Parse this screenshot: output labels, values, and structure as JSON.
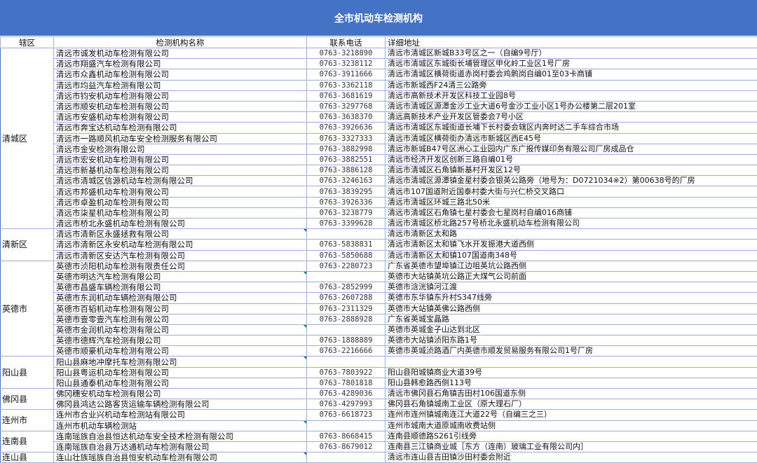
{
  "title": "全市机动车检测机构",
  "headers": {
    "district": "辖区",
    "name": "检测机构名称",
    "phone": "联系电话",
    "address": "详细地址"
  },
  "accent_color": "#4472C4",
  "groups": [
    {
      "district": "清城区",
      "rows": [
        {
          "name": "清远市诚发机动车检测有限公司",
          "phone": "0763-3218890",
          "address": "清远市清城区新城B33号区之一（自编9号厅）"
        },
        {
          "name": "清远市翔盛汽车检测有限公司",
          "phone": "0763-3238112",
          "address": "清远市清城区东城街长埔管理区甲化岭工业区1号厂房"
        },
        {
          "name": "清远市众鑫机动车检测有限公司",
          "phone": "0763-3911666",
          "address": "清远市清城区横荷街道赤岗村委会鸡鹘岗自编01至03卡商铺"
        },
        {
          "name": "清远市均益汽车检测有限公司",
          "phone": "0763-3362118",
          "address": "清远市新城西F24清三公路旁"
        },
        {
          "name": "清远市钧安机动车检测有限公司",
          "phone": "0763-3681619",
          "address": "清远市高新技术开发区科技工业园8号"
        },
        {
          "name": "清远市顺安机动车检测有限公司",
          "phone": "0763-3297768",
          "address": "清远市清城区源潭金沙工业大道6号金沙工业小区1号办公楼第二层201室"
        },
        {
          "name": "清远市安盛机动车检测有限公司",
          "phone": "0763-3638370",
          "address": "清远高新技术产业开发区管委会7号小区"
        },
        {
          "name": "清远市奔宝达机动车检测有限公司",
          "phone": "0763-3926636",
          "address": "清远市清城区东城街道长埔下长村委会辖区内奔时达二手车综合市场"
        },
        {
          "name": "清远市一路顺风机动车安全检测服务有限公司",
          "phone": "0763-3327333",
          "address": "清远市清城区横荷街办清远市新城区西E45号"
        },
        {
          "name": "清远市金安检测有限公司",
          "phone": "0763-3882998",
          "address": "清远市新城B47号区洲心工业园内广东广报传媒印务有限公司厂房成品仓"
        },
        {
          "name": "清远市宏安机动车检测有限公司",
          "phone": "0763-3882551",
          "address": "清远市经济开发区创新三路自编01号"
        },
        {
          "name": "清远市新基机动车检测有限公司",
          "phone": "0763-3886128",
          "address": "清远市清城区石角镇新基村开发区12号"
        },
        {
          "name": "清远市清城区信源机动车检测有限公司",
          "phone": "0763-3246163",
          "address": "清远市清城区源潭镇金星村委会银英公路旁（地号为：D0721034※2）第00638号的厂房"
        },
        {
          "name": "清远市邦盛机动车检测有限公司",
          "phone": "0763-3839295",
          "address": "清远市107国道附近国泰村委大街与兴仁桥交叉路口"
        },
        {
          "name": "清远市卓盈机动车检测有限公司",
          "phone": "0763-3926336",
          "address": "清远市清城区环城三路北50米"
        },
        {
          "name": "清远市柒星机动车检测有限公司",
          "phone": "0763-3238779",
          "address": "清远市清城区石角镇七星村委会七星岗村自编016商铺"
        },
        {
          "name": "清远市桥北永盛机动车检测有限公司",
          "phone": "0763-3399628",
          "address": "清远市清城区桥北路257号桥北永盛机动车检测有限公司"
        }
      ]
    },
    {
      "district": "清新区",
      "rows": [
        {
          "name": "清远市清新区永盛拯救有限公司",
          "phone": "",
          "address": "清远市清新区太和路",
          "mark": true
        },
        {
          "name": "清远市清新区永安机动车检测有限公司",
          "phone": "0763-5838831",
          "address": "清远市清新区太和镇飞水开发振港大道西侧"
        },
        {
          "name": "清远市清新区安达汽车检测有限公司",
          "phone": "0763-5850688",
          "address": "清远市清新区太和镇107国道南348号"
        }
      ]
    },
    {
      "district": "英德市",
      "rows": [
        {
          "name": "英德市浈阳机动车检测有限责任公司",
          "phone": "0763-2280723",
          "address": "广东省英德市望埠镇江边咀英坑公路西侧"
        },
        {
          "name": "英德市明达汽车检测有限公司",
          "phone": "",
          "address": "英德市大站镇英坑公路正大煤气公司前面",
          "mark": true
        },
        {
          "name": "英德市昌盛车辆检测有限公司",
          "phone": "0763-2852999",
          "address": "英德市浛洸镇河江渡"
        },
        {
          "name": "英德市东润机动车辆检测有限公司",
          "phone": "0763-2607288",
          "address": "英德市东华镇东升村S347线旁"
        },
        {
          "name": "英德市百韬机动车检测有限公司",
          "phone": "0763-2311329",
          "address": "英德市大站镇英佛公路西侧"
        },
        {
          "name": "英德市壹零壹汽车检测有限公司",
          "phone": "0763-2888928",
          "address": "广东省英城宝晶路"
        },
        {
          "name": "英德市金润机动车检测有限公司",
          "phone": "",
          "address": "英德市英城金子山达到北区",
          "mark": true
        },
        {
          "name": "英德市德辉汽车检测有限公司",
          "phone": "0763-1888889",
          "address": "英德市大站镇浈阳东路1号"
        },
        {
          "name": "英德市顺豪机动车检测有限公司",
          "phone": "0763-2216666",
          "address": "英德市英城浈路酒厂内英德市顺发贸易服务有限公司1号厂房"
        }
      ]
    },
    {
      "district": "阳山县",
      "rows": [
        {
          "name": "阳山县麻地冲摩托车检测有限公司",
          "phone": "",
          "address": "",
          "mark": true
        },
        {
          "name": "阳山县粤运机动车检测有限公司",
          "phone": "0763-7803922",
          "address": "阳山县阳城镇商业大道39号"
        },
        {
          "name": "阳山县通泰机动车检测有限公司",
          "phone": "0763-7801818",
          "address": "阳山县韩愈路西侧113号"
        }
      ]
    },
    {
      "district": "佛冈县",
      "rows": [
        {
          "name": "佛冈穗安机动车检测有限公司",
          "phone": "0763-4289036",
          "address": "清远市佛冈县石角镇吉田村106国道东侧"
        },
        {
          "name": "佛冈县鸿达公路客货运输车辆检测有限公司",
          "phone": "0763-4297993",
          "address": "佛冈县石角镇城南工业区（原大理石厂）"
        }
      ]
    },
    {
      "district": "连州市",
      "rows": [
        {
          "name": "连州市合业兴机动车检测站有限公司",
          "phone": "0763-6618723",
          "address": "连州市连州镇城南连江大道22号（自编三之三）"
        },
        {
          "name": "连州市机动车辆检测站",
          "phone": "",
          "address": "连州市城南大道原城南收费站侧",
          "mark": true
        }
      ]
    },
    {
      "district": "连南县",
      "rows": [
        {
          "name": "连南瑶族自治县恒达机动车安全技术检测有限公司",
          "phone": "0763-8668415",
          "address": "连南县顺德路S261引线旁"
        },
        {
          "name": "连南瑶族自治县万达通机动车检测有限公司",
          "phone": "0763-8679012",
          "address": "连南县三江镇商业城［东方（连南）玻璃工业有限公司内］"
        }
      ]
    },
    {
      "district": "连山县",
      "rows": [
        {
          "name": "连山壮族瑶族自治县恒安机动车检测有限公司",
          "phone": "",
          "address": "清远市连山县吉田镇沙田村委会附近",
          "mark": true
        }
      ]
    }
  ]
}
